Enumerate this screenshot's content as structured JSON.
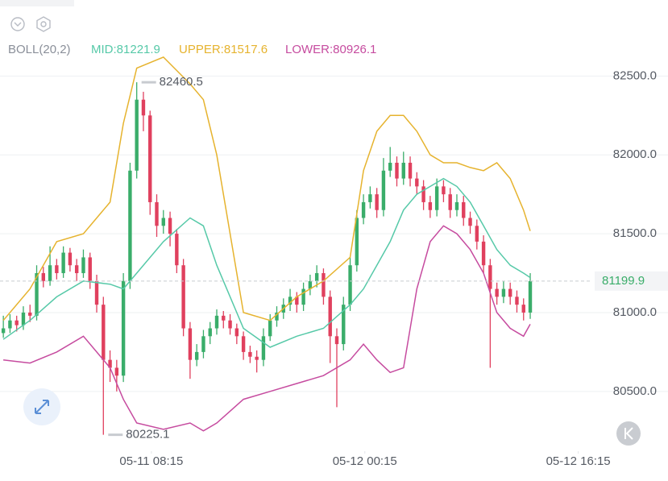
{
  "chart_data": {
    "type": "candlestick",
    "indicator": {
      "name": "BOLL(20,2)",
      "mid": "MID:81221.9",
      "upper": "UPPER:81517.6",
      "lower": "LOWER:80926.1"
    },
    "up_color": "#3aad6a",
    "down_color": "#e0405e",
    "candles": [
      [
        80870,
        80980,
        80840,
        80900
      ],
      [
        80900,
        80990,
        80870,
        80950
      ],
      [
        80950,
        80980,
        80880,
        80920
      ],
      [
        80920,
        81040,
        80890,
        81000
      ],
      [
        81000,
        81050,
        80940,
        80980
      ],
      [
        80980,
        81300,
        80950,
        81250
      ],
      [
        81250,
        81290,
        81160,
        81200
      ],
      [
        81200,
        81420,
        81170,
        81300
      ],
      [
        81300,
        81340,
        81210,
        81250
      ],
      [
        81250,
        81420,
        81220,
        81380
      ],
      [
        81380,
        81410,
        81260,
        81300
      ],
      [
        81300,
        81340,
        81200,
        81250
      ],
      [
        81250,
        81400,
        81220,
        81350
      ],
      [
        81350,
        81380,
        81150,
        81200
      ],
      [
        81200,
        81240,
        81000,
        81050
      ],
      [
        81050,
        81100,
        80225.1,
        80700
      ],
      [
        80700,
        80760,
        80560,
        80650
      ],
      [
        80650,
        80700,
        80500,
        80600
      ],
      [
        80600,
        81250,
        80560,
        81200
      ],
      [
        81200,
        81950,
        81150,
        81900
      ],
      [
        81900,
        82460.5,
        81850,
        82350
      ],
      [
        82350,
        82400,
        82150,
        82250
      ],
      [
        82250,
        82280,
        81620,
        81700
      ],
      [
        81700,
        81750,
        81480,
        81550
      ],
      [
        81550,
        81650,
        81500,
        81600
      ],
      [
        81600,
        81640,
        81420,
        81500
      ],
      [
        81500,
        81530,
        81250,
        81300
      ],
      [
        81300,
        81340,
        80850,
        80900
      ],
      [
        80900,
        80940,
        80580,
        80700
      ],
      [
        80700,
        80800,
        80660,
        80750
      ],
      [
        80750,
        80890,
        80710,
        80850
      ],
      [
        80850,
        80940,
        80800,
        80900
      ],
      [
        80900,
        81020,
        80860,
        80980
      ],
      [
        80980,
        81010,
        80900,
        80950
      ],
      [
        80950,
        80990,
        80860,
        80900
      ],
      [
        80900,
        80930,
        80800,
        80850
      ],
      [
        80850,
        80880,
        80700,
        80750
      ],
      [
        80750,
        80790,
        80680,
        80720
      ],
      [
        80720,
        80760,
        80620,
        80700
      ],
      [
        80700,
        80900,
        80660,
        80850
      ],
      [
        80850,
        80990,
        80820,
        80950
      ],
      [
        80950,
        81040,
        80910,
        81000
      ],
      [
        81000,
        81090,
        80960,
        81050
      ],
      [
        81050,
        81150,
        81010,
        81100
      ],
      [
        81100,
        81130,
        81000,
        81050
      ],
      [
        81050,
        81190,
        81010,
        81150
      ],
      [
        81150,
        81240,
        81110,
        81200
      ],
      [
        81200,
        81300,
        81160,
        81250
      ],
      [
        81250,
        81280,
        81050,
        81100
      ],
      [
        81100,
        81140,
        80680,
        80850
      ],
      [
        80850,
        80900,
        80400,
        80800
      ],
      [
        80800,
        81100,
        80760,
        81050
      ],
      [
        81050,
        81350,
        81010,
        81300
      ],
      [
        81300,
        81650,
        81260,
        81600
      ],
      [
        81600,
        81750,
        81560,
        81700
      ],
      [
        81700,
        81800,
        81660,
        81750
      ],
      [
        81750,
        81790,
        81600,
        81650
      ],
      [
        81650,
        81980,
        81610,
        81900
      ],
      [
        81900,
        82050,
        81860,
        81950
      ],
      [
        81950,
        81990,
        81800,
        81850
      ],
      [
        81850,
        82020,
        81810,
        81950
      ],
      [
        81950,
        81990,
        81800,
        81850
      ],
      [
        81850,
        81890,
        81750,
        81800
      ],
      [
        81800,
        81840,
        81650,
        81700
      ],
      [
        81700,
        81740,
        81600,
        81650
      ],
      [
        81650,
        81850,
        81610,
        81800
      ],
      [
        81800,
        81840,
        81700,
        81750
      ],
      [
        81750,
        81790,
        81600,
        81650
      ],
      [
        81650,
        81750,
        81610,
        81700
      ],
      [
        81700,
        81740,
        81550,
        81600
      ],
      [
        81600,
        81640,
        81500,
        81550
      ],
      [
        81550,
        81590,
        81400,
        81450
      ],
      [
        81450,
        81490,
        81250,
        81300
      ],
      [
        81300,
        81340,
        80650,
        81150
      ],
      [
        81150,
        81190,
        81050,
        81100
      ],
      [
        81100,
        81200,
        81060,
        81150
      ],
      [
        81150,
        81190,
        81050,
        81100
      ],
      [
        81100,
        81140,
        81000,
        81050
      ],
      [
        81050,
        81090,
        80950,
        81000
      ],
      [
        81000,
        81250,
        80960,
        81199.9
      ]
    ],
    "band_x": [
      0,
      4,
      8,
      12,
      16,
      18,
      20,
      24,
      28,
      30,
      32,
      36,
      40,
      44,
      48,
      52,
      54,
      56,
      58,
      60,
      62,
      64,
      66,
      68,
      70,
      72,
      74,
      76,
      78,
      79
    ],
    "series": [
      {
        "name": "UPPER",
        "color": "#e6b32e",
        "values": [
          80950,
          81150,
          81450,
          81500,
          81700,
          82200,
          82550,
          82620,
          82450,
          82350,
          82000,
          81000,
          80950,
          81100,
          81200,
          81350,
          81900,
          82150,
          82250,
          82250,
          82150,
          82000,
          81950,
          81950,
          81920,
          81900,
          81950,
          81850,
          81650,
          81517.6
        ]
      },
      {
        "name": "MID",
        "color": "#56c9a8",
        "values": [
          80830,
          80950,
          81100,
          81200,
          81180,
          81150,
          81250,
          81450,
          81600,
          81550,
          81300,
          80900,
          80780,
          80850,
          80900,
          81050,
          81150,
          81300,
          81450,
          81650,
          81750,
          81800,
          81850,
          81800,
          81700,
          81550,
          81400,
          81300,
          81250,
          81221.9
        ]
      },
      {
        "name": "LOWER",
        "color": "#c64b9f",
        "values": [
          80700,
          80680,
          80750,
          80850,
          80650,
          80450,
          80300,
          80260,
          80300,
          80250,
          80300,
          80450,
          80500,
          80550,
          80600,
          80700,
          80800,
          80700,
          80620,
          80650,
          81150,
          81450,
          81550,
          81500,
          81400,
          81250,
          81000,
          80900,
          80850,
          80926.1
        ]
      }
    ],
    "last_price": 81199.9,
    "xlim": [
      -0.5,
      88.3
    ],
    "xticks": [
      {
        "value": 22.2,
        "label": "05-11 08:15"
      },
      {
        "value": 54.2,
        "label": "05-12 00:15"
      },
      {
        "value": 86.2,
        "label": "05-12 16:15"
      }
    ],
    "ylim": [
      80121,
      82982
    ],
    "yticks": [
      {
        "value": 80500,
        "label": "80500.0"
      },
      {
        "value": 81000,
        "label": "81000.0"
      },
      {
        "value": 81500,
        "label": "81500.0"
      },
      {
        "value": 82000,
        "label": "82000.0"
      },
      {
        "value": 82500,
        "label": "82500.0"
      }
    ],
    "grid": true
  }
}
